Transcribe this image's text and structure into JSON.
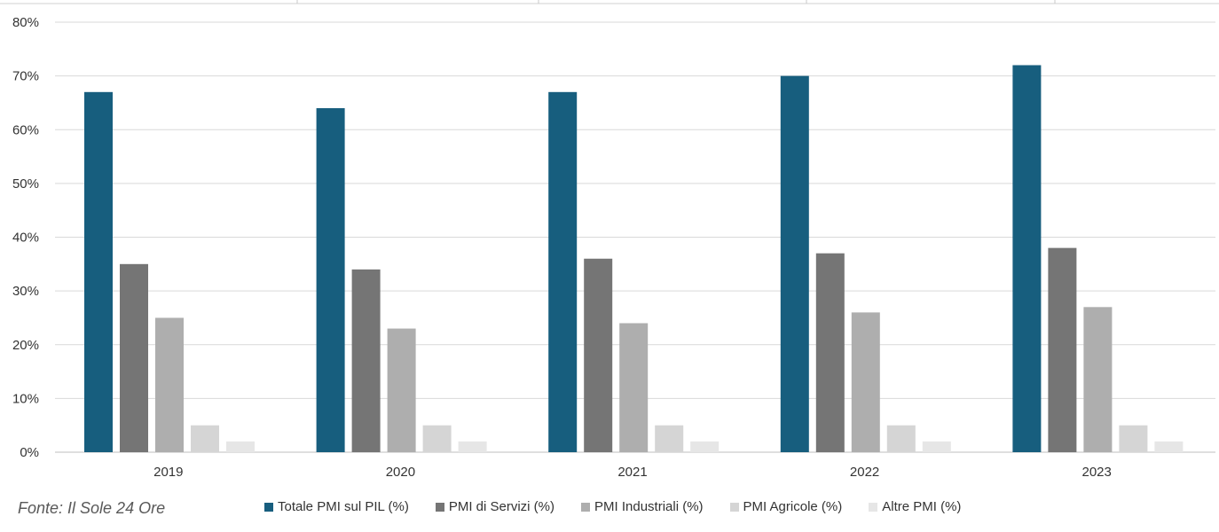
{
  "source": "Fonte: Il Sole 24 Ore",
  "chart_data": {
    "type": "bar",
    "categories": [
      "2019",
      "2020",
      "2021",
      "2022",
      "2023"
    ],
    "series": [
      {
        "name": "Totale PMI sul PIL (%)",
        "color": "#175e7e",
        "values": [
          67,
          64,
          67,
          70,
          72
        ]
      },
      {
        "name": "PMI di Servizi (%)",
        "color": "#757575",
        "values": [
          35,
          34,
          36,
          37,
          38
        ]
      },
      {
        "name": "PMI Industriali (%)",
        "color": "#aeaeae",
        "values": [
          25,
          23,
          24,
          26,
          27
        ]
      },
      {
        "name": "PMI Agricole (%)",
        "color": "#d5d5d5",
        "values": [
          5,
          5,
          5,
          5,
          5
        ]
      },
      {
        "name": "Altre PMI (%)",
        "color": "#e6e6e6",
        "values": [
          2,
          2,
          2,
          2,
          2
        ]
      }
    ],
    "yticks": [
      "0%",
      "10%",
      "20%",
      "30%",
      "40%",
      "50%",
      "60%",
      "70%",
      "80%"
    ],
    "ylim": [
      0,
      80
    ],
    "grid": true,
    "legend_position": "bottom"
  }
}
